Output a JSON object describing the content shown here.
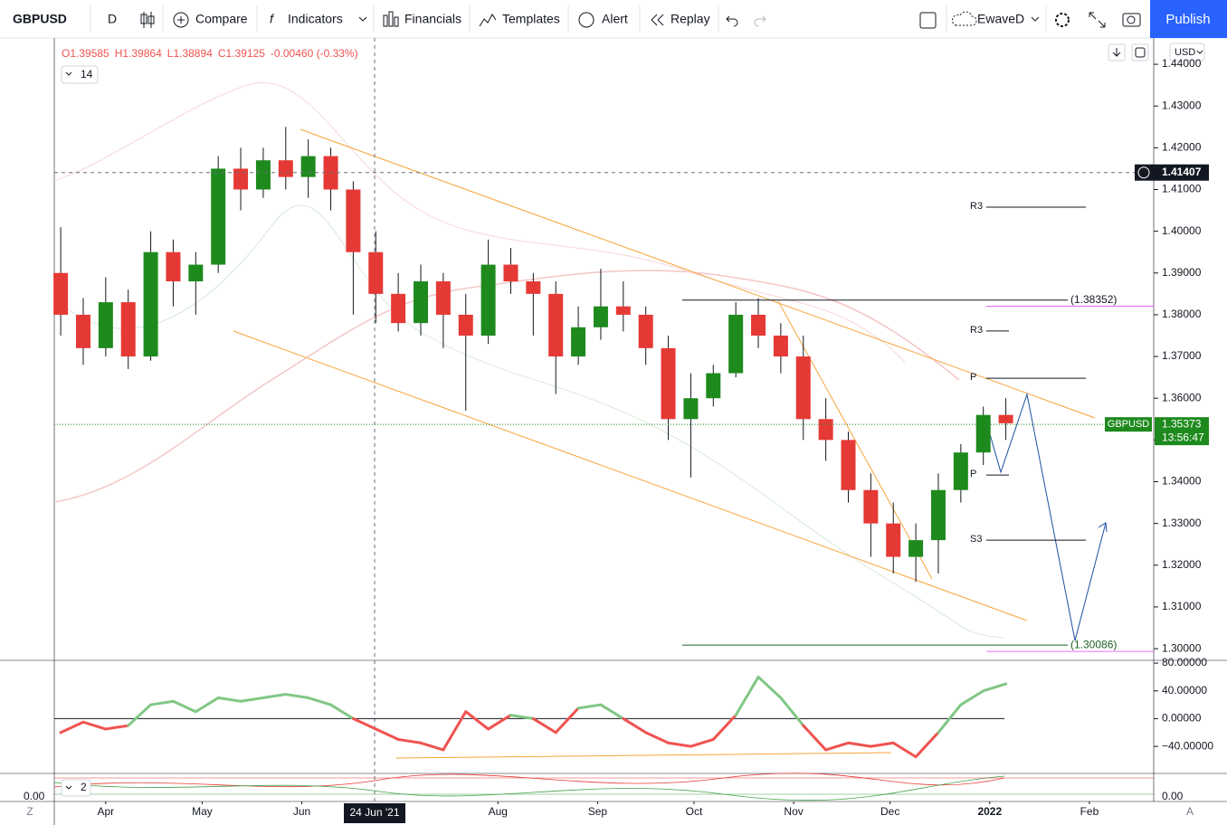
{
  "toolbar": {
    "symbol": "GBPUSD",
    "interval": "D",
    "buttons": [
      "Compare",
      "Indicators",
      "Financials",
      "Templates",
      "Alert",
      "Replay"
    ],
    "layout": "EwaveD",
    "publish": "Publish"
  },
  "legend": {
    "ohlc": [
      "O1.39585",
      "H1.39864",
      "L1.38894",
      "C1.39125",
      "-0.00460 (-0.33%)"
    ],
    "length": "14",
    "pane2_length": "2"
  },
  "currency": "USD",
  "symbol_tag": "GBPUSD",
  "countdown": "13:56:47",
  "crosshair_date": "24 Jun '21",
  "pane2_left": "0.00",
  "pane2_right": "0.00",
  "scale_left": "Z",
  "scale_right": "A",
  "chart_data": [
    {
      "type": "candlestick",
      "up_color": "#26a69a",
      "body_up": "#1e8a1e",
      "down_color": "#e53935",
      "grid": false,
      "x": [
        -14,
        -7,
        0,
        7,
        14,
        21,
        28,
        35,
        42,
        49,
        56,
        63,
        70,
        77,
        84,
        91,
        98,
        105,
        112,
        119,
        126,
        133,
        140,
        147,
        154,
        161,
        168,
        175,
        182,
        189,
        196,
        203,
        210,
        217,
        224,
        231,
        238,
        245,
        252,
        259,
        266,
        273,
        280
      ],
      "open": [
        1.39,
        1.38,
        1.372,
        1.383,
        1.37,
        1.395,
        1.388,
        1.392,
        1.415,
        1.41,
        1.417,
        1.413,
        1.418,
        1.41,
        1.395,
        1.385,
        1.378,
        1.388,
        1.38,
        1.375,
        1.392,
        1.388,
        1.385,
        1.37,
        1.377,
        1.382,
        1.38,
        1.372,
        1.355,
        1.36,
        1.366,
        1.38,
        1.375,
        1.37,
        1.355,
        1.35,
        1.338,
        1.33,
        1.322,
        1.326,
        1.338,
        1.347,
        1.356
      ],
      "high": [
        1.401,
        1.384,
        1.389,
        1.386,
        1.4,
        1.398,
        1.395,
        1.418,
        1.42,
        1.42,
        1.425,
        1.422,
        1.42,
        1.412,
        1.4,
        1.39,
        1.392,
        1.39,
        1.385,
        1.398,
        1.396,
        1.39,
        1.388,
        1.382,
        1.391,
        1.388,
        1.382,
        1.375,
        1.366,
        1.368,
        1.383,
        1.384,
        1.378,
        1.375,
        1.36,
        1.352,
        1.342,
        1.335,
        1.33,
        1.342,
        1.349,
        1.358,
        1.36
      ],
      "low": [
        1.375,
        1.368,
        1.37,
        1.367,
        1.369,
        1.382,
        1.38,
        1.39,
        1.405,
        1.408,
        1.41,
        1.408,
        1.405,
        1.38,
        1.378,
        1.376,
        1.375,
        1.372,
        1.357,
        1.373,
        1.385,
        1.375,
        1.361,
        1.368,
        1.374,
        1.376,
        1.368,
        1.35,
        1.341,
        1.358,
        1.365,
        1.372,
        1.366,
        1.35,
        1.345,
        1.335,
        1.322,
        1.318,
        1.316,
        1.318,
        1.335,
        1.344,
        1.35
      ],
      "close": [
        1.38,
        1.372,
        1.383,
        1.37,
        1.395,
        1.388,
        1.392,
        1.415,
        1.41,
        1.417,
        1.413,
        1.418,
        1.41,
        1.395,
        1.385,
        1.378,
        1.388,
        1.38,
        1.375,
        1.392,
        1.388,
        1.385,
        1.37,
        1.377,
        1.382,
        1.38,
        1.372,
        1.355,
        1.36,
        1.366,
        1.38,
        1.375,
        1.37,
        1.355,
        1.35,
        1.338,
        1.33,
        1.322,
        1.326,
        1.338,
        1.347,
        1.356,
        1.354
      ],
      "xlim": [
        -16,
        326
      ],
      "xticks": [
        {
          "value": 0,
          "label": "Apr"
        },
        {
          "value": 30,
          "label": "May"
        },
        {
          "value": 61,
          "label": "Jun"
        },
        {
          "value": 122,
          "label": "Aug"
        },
        {
          "value": 153,
          "label": "Sep"
        },
        {
          "value": 183,
          "label": "Oct"
        },
        {
          "value": 214,
          "label": "Nov"
        },
        {
          "value": 244,
          "label": "Dec"
        },
        {
          "value": 275,
          "label": "2022"
        },
        {
          "value": 306,
          "label": "Feb"
        }
      ],
      "ylim": [
        1.2972,
        1.4463
      ],
      "yticks": [
        {
          "value": 1.44,
          "label": "1.44000"
        },
        {
          "value": 1.43,
          "label": "1.43000"
        },
        {
          "value": 1.42,
          "label": "1.42000"
        },
        {
          "value": 1.41,
          "label": "1.41000"
        },
        {
          "value": 1.4,
          "label": "1.40000"
        },
        {
          "value": 1.39,
          "label": "1.39000"
        },
        {
          "value": 1.38,
          "label": "1.38000"
        },
        {
          "value": 1.37,
          "label": "1.37000"
        },
        {
          "value": 1.36,
          "label": "1.36000"
        },
        {
          "value": 1.35,
          "label": "1.35000"
        },
        {
          "value": 1.34,
          "label": "1.34000"
        },
        {
          "value": 1.33,
          "label": "1.33000"
        },
        {
          "value": 1.32,
          "label": "1.32000"
        },
        {
          "value": 1.31,
          "label": "1.31000"
        },
        {
          "value": 1.3,
          "label": "1.30000"
        }
      ],
      "last_price": 1.35373,
      "crosshair_price": 1.41407,
      "levels": [
        {
          "label": "(1.38352)",
          "value": 1.38352,
          "color": "#131722"
        },
        {
          "label": "(1.30086)",
          "value": 1.30086,
          "color": "#1b5e20"
        }
      ],
      "pivots": [
        {
          "label": "R3",
          "value": 1.40577
        },
        {
          "label": "R3",
          "value": 1.3761
        },
        {
          "label": "P",
          "value": 1.3648
        },
        {
          "label": "P",
          "value": 1.3416
        },
        {
          "label": "S3",
          "value": 1.326
        }
      ]
    },
    {
      "type": "oscillator",
      "up_color": "#81c784",
      "down_color": "#ef5350",
      "values": [
        -20,
        -5,
        -15,
        -10,
        20,
        25,
        10,
        30,
        25,
        30,
        35,
        30,
        20,
        0,
        -15,
        -30,
        -35,
        -45,
        10,
        -15,
        5,
        0,
        -20,
        15,
        20,
        0,
        -20,
        -35,
        -40,
        -30,
        5,
        60,
        30,
        -10,
        -45,
        -35,
        -40,
        -35,
        -55,
        -20,
        20,
        40,
        50
      ],
      "ylim": [
        -79,
        84
      ],
      "yticks": [
        {
          "value": 80,
          "label": "80.00000"
        },
        {
          "value": 40,
          "label": "40.00000"
        },
        {
          "value": 0,
          "label": "0.00000"
        },
        {
          "value": -40,
          "label": "−40.00000"
        }
      ]
    }
  ]
}
